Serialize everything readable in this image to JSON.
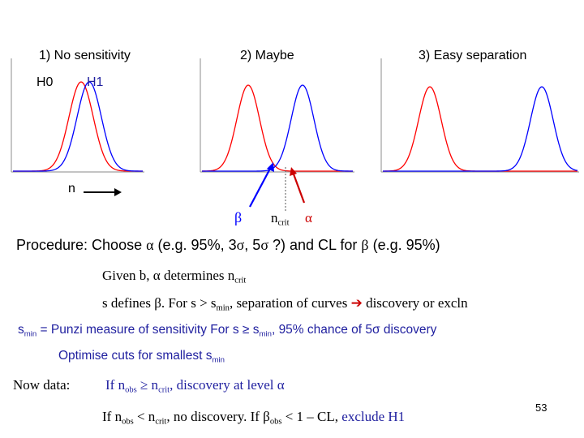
{
  "panels": [
    {
      "title": "1)  No sensitivity"
    },
    {
      "title": "2) Maybe"
    },
    {
      "title": "3) Easy separation"
    }
  ],
  "legend": {
    "h0": "H0",
    "h1": "H1",
    "n_axis": "n"
  },
  "annotations": {
    "beta": "β",
    "ncrit_base": "n",
    "ncrit_sub": "crit",
    "alpha": "α"
  },
  "procedure": {
    "prefix": "Procedure:  Choose ",
    "alpha": "α",
    "middle": " (e.g. 95%, 3",
    "sigma1": "σ",
    "comma": ", 5",
    "sigma2": "σ",
    "mid2": " ?) and CL for ",
    "beta": "β",
    "suffix": "  (e.g. 95%)"
  },
  "given": {
    "text": "Given b, α determines n",
    "sub": "crit"
  },
  "sdefines": {
    "a": "s defines  β.    For s > s",
    "sub": "min",
    "b": ", separation of curves ",
    "arrow": "➔",
    "c": " discovery or excln"
  },
  "punzi": {
    "s": "s",
    "sub": "min",
    "a": " = Punzi measure of sensitivity   For s ≥ s",
    "sub2": "min",
    "b": ", 95% chance of 5σ discovery"
  },
  "optimise": {
    "a": "Optimise cuts for smallest s",
    "sub": "min"
  },
  "now_data": {
    "label": "Now data:",
    "a": "If n",
    "sub1": "obs",
    "b": " ≥ n",
    "sub2": "crit",
    "c": ", discovery at level α"
  },
  "last": {
    "a": "If n",
    "sub1": "obs",
    "b": " < n",
    "sub2": "crit",
    "c": ", no discovery.  If β",
    "sub3": "obs",
    "d": " < 1 – CL, ",
    "e": "exclude H1"
  },
  "page_number": "53",
  "colors": {
    "red": "#ff0000",
    "blue": "#0000ff",
    "navy": "#1f1f9f",
    "grey": "#a0a0a0"
  }
}
